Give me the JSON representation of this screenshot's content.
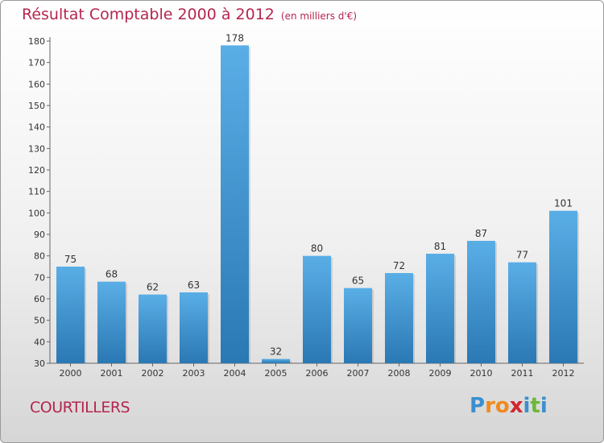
{
  "chart_data": {
    "type": "bar",
    "title": "Résultat Comptable 2000 à 2012",
    "subtitle": "(en milliers d'€)",
    "categories": [
      "2000",
      "2001",
      "2002",
      "2003",
      "2004",
      "2005",
      "2006",
      "2007",
      "2008",
      "2009",
      "2010",
      "2011",
      "2012"
    ],
    "values": [
      75,
      68,
      62,
      63,
      178,
      32,
      80,
      65,
      72,
      81,
      87,
      77,
      101
    ],
    "ylim": [
      30,
      180
    ],
    "yticks": [
      30,
      40,
      50,
      60,
      70,
      80,
      90,
      100,
      110,
      120,
      130,
      140,
      150,
      160,
      170,
      180
    ],
    "xlabel": "",
    "ylabel": "",
    "grid": false,
    "bar_color_top": "#5aaee6",
    "bar_color_bottom": "#2a78b4"
  },
  "commune": "COURTILLERS",
  "logo": {
    "text": "Proxiti",
    "letters": [
      "P",
      "r",
      "o",
      "x",
      "i",
      "t",
      "i"
    ],
    "colors": [
      "#3a8fd0",
      "#f08a1c",
      "#f08a1c",
      "#d0262f",
      "#3a8fd0",
      "#6cb83a",
      "#3a8fd0"
    ]
  },
  "accent_color": "#b5264f"
}
